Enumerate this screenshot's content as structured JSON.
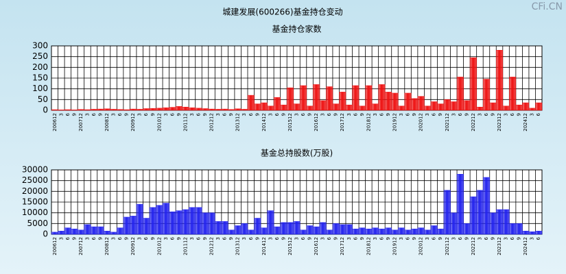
{
  "watermark": "CFi.CN",
  "title": "城建发展(600266)基金持仓变动",
  "chart_data": [
    {
      "type": "bar",
      "title": "基金持仓家数",
      "categories": [
        "200612",
        "3",
        "6",
        "9",
        "200712",
        "3",
        "6",
        "9",
        "200812",
        "3",
        "6",
        "9",
        "200912",
        "3",
        "6",
        "9",
        "201012",
        "3",
        "6",
        "9",
        "201112",
        "3",
        "6",
        "9",
        "201212",
        "3",
        "6",
        "9",
        "201312",
        "3",
        "6",
        "9",
        "201412",
        "3",
        "6",
        "9",
        "201512",
        "3",
        "6",
        "9",
        "201612",
        "3",
        "6",
        "9",
        "201712",
        "3",
        "6",
        "9",
        "201812",
        "3",
        "6",
        "9",
        "201912",
        "3",
        "6",
        "9",
        "202012",
        "3",
        "6",
        "9",
        "202112",
        "3",
        "6",
        "9",
        "202212",
        "3",
        "6",
        "9",
        "202312",
        "3",
        "6",
        "9",
        "202412",
        "3",
        "6"
      ],
      "values": [
        3,
        2,
        3,
        2,
        4,
        3,
        5,
        6,
        7,
        5,
        4,
        3,
        6,
        5,
        8,
        9,
        10,
        12,
        14,
        18,
        15,
        12,
        10,
        8,
        6,
        5,
        6,
        4,
        7,
        5,
        70,
        30,
        35,
        20,
        60,
        25,
        105,
        30,
        115,
        20,
        120,
        45,
        110,
        30,
        85,
        25,
        115,
        20,
        115,
        30,
        120,
        85,
        80,
        20,
        80,
        55,
        65,
        20,
        40,
        30,
        50,
        40,
        155,
        45,
        245,
        15,
        145,
        35,
        280,
        20,
        155,
        25,
        35,
        10,
        35
      ],
      "color": "#ee1111",
      "ylim": [
        0,
        300
      ],
      "yticks": [
        0,
        50,
        100,
        150,
        200,
        250,
        300
      ],
      "grid": true
    },
    {
      "type": "bar",
      "title": "基金总持股数(万股)",
      "categories": [
        "200612",
        "3",
        "6",
        "9",
        "200712",
        "3",
        "6",
        "9",
        "200812",
        "3",
        "6",
        "9",
        "200912",
        "3",
        "6",
        "9",
        "201012",
        "3",
        "6",
        "9",
        "201112",
        "3",
        "6",
        "9",
        "201212",
        "3",
        "6",
        "9",
        "201312",
        "3",
        "6",
        "9",
        "201412",
        "3",
        "6",
        "9",
        "201512",
        "3",
        "6",
        "9",
        "201612",
        "3",
        "6",
        "9",
        "201712",
        "3",
        "6",
        "9",
        "201812",
        "3",
        "6",
        "9",
        "201912",
        "3",
        "6",
        "9",
        "202012",
        "3",
        "6",
        "9",
        "202112",
        "3",
        "6",
        "9",
        "202212",
        "3",
        "6",
        "9",
        "202312",
        "3",
        "6",
        "9",
        "202412",
        "3",
        "6"
      ],
      "values": [
        1000,
        1500,
        3000,
        2500,
        2000,
        4500,
        3500,
        3500,
        1500,
        1000,
        3000,
        8000,
        8500,
        14000,
        7500,
        12500,
        13500,
        14500,
        10500,
        11000,
        11500,
        12500,
        12500,
        10000,
        10000,
        6000,
        6000,
        2000,
        4000,
        5000,
        2000,
        7500,
        3000,
        11000,
        3500,
        5500,
        5500,
        6000,
        2000,
        4000,
        3500,
        5500,
        2000,
        5000,
        4500,
        4500,
        2500,
        3000,
        2500,
        3000,
        2500,
        3000,
        2000,
        3000,
        2000,
        2500,
        3000,
        2000,
        4000,
        2500,
        20500,
        10000,
        28000,
        5000,
        17500,
        20500,
        26500,
        10000,
        11500,
        11500,
        5000,
        5000,
        1500,
        1200,
        1500
      ],
      "color": "#2222ee",
      "ylim": [
        0,
        30000
      ],
      "yticks": [
        0,
        5000,
        10000,
        15000,
        20000,
        25000,
        30000
      ],
      "grid": true
    }
  ]
}
